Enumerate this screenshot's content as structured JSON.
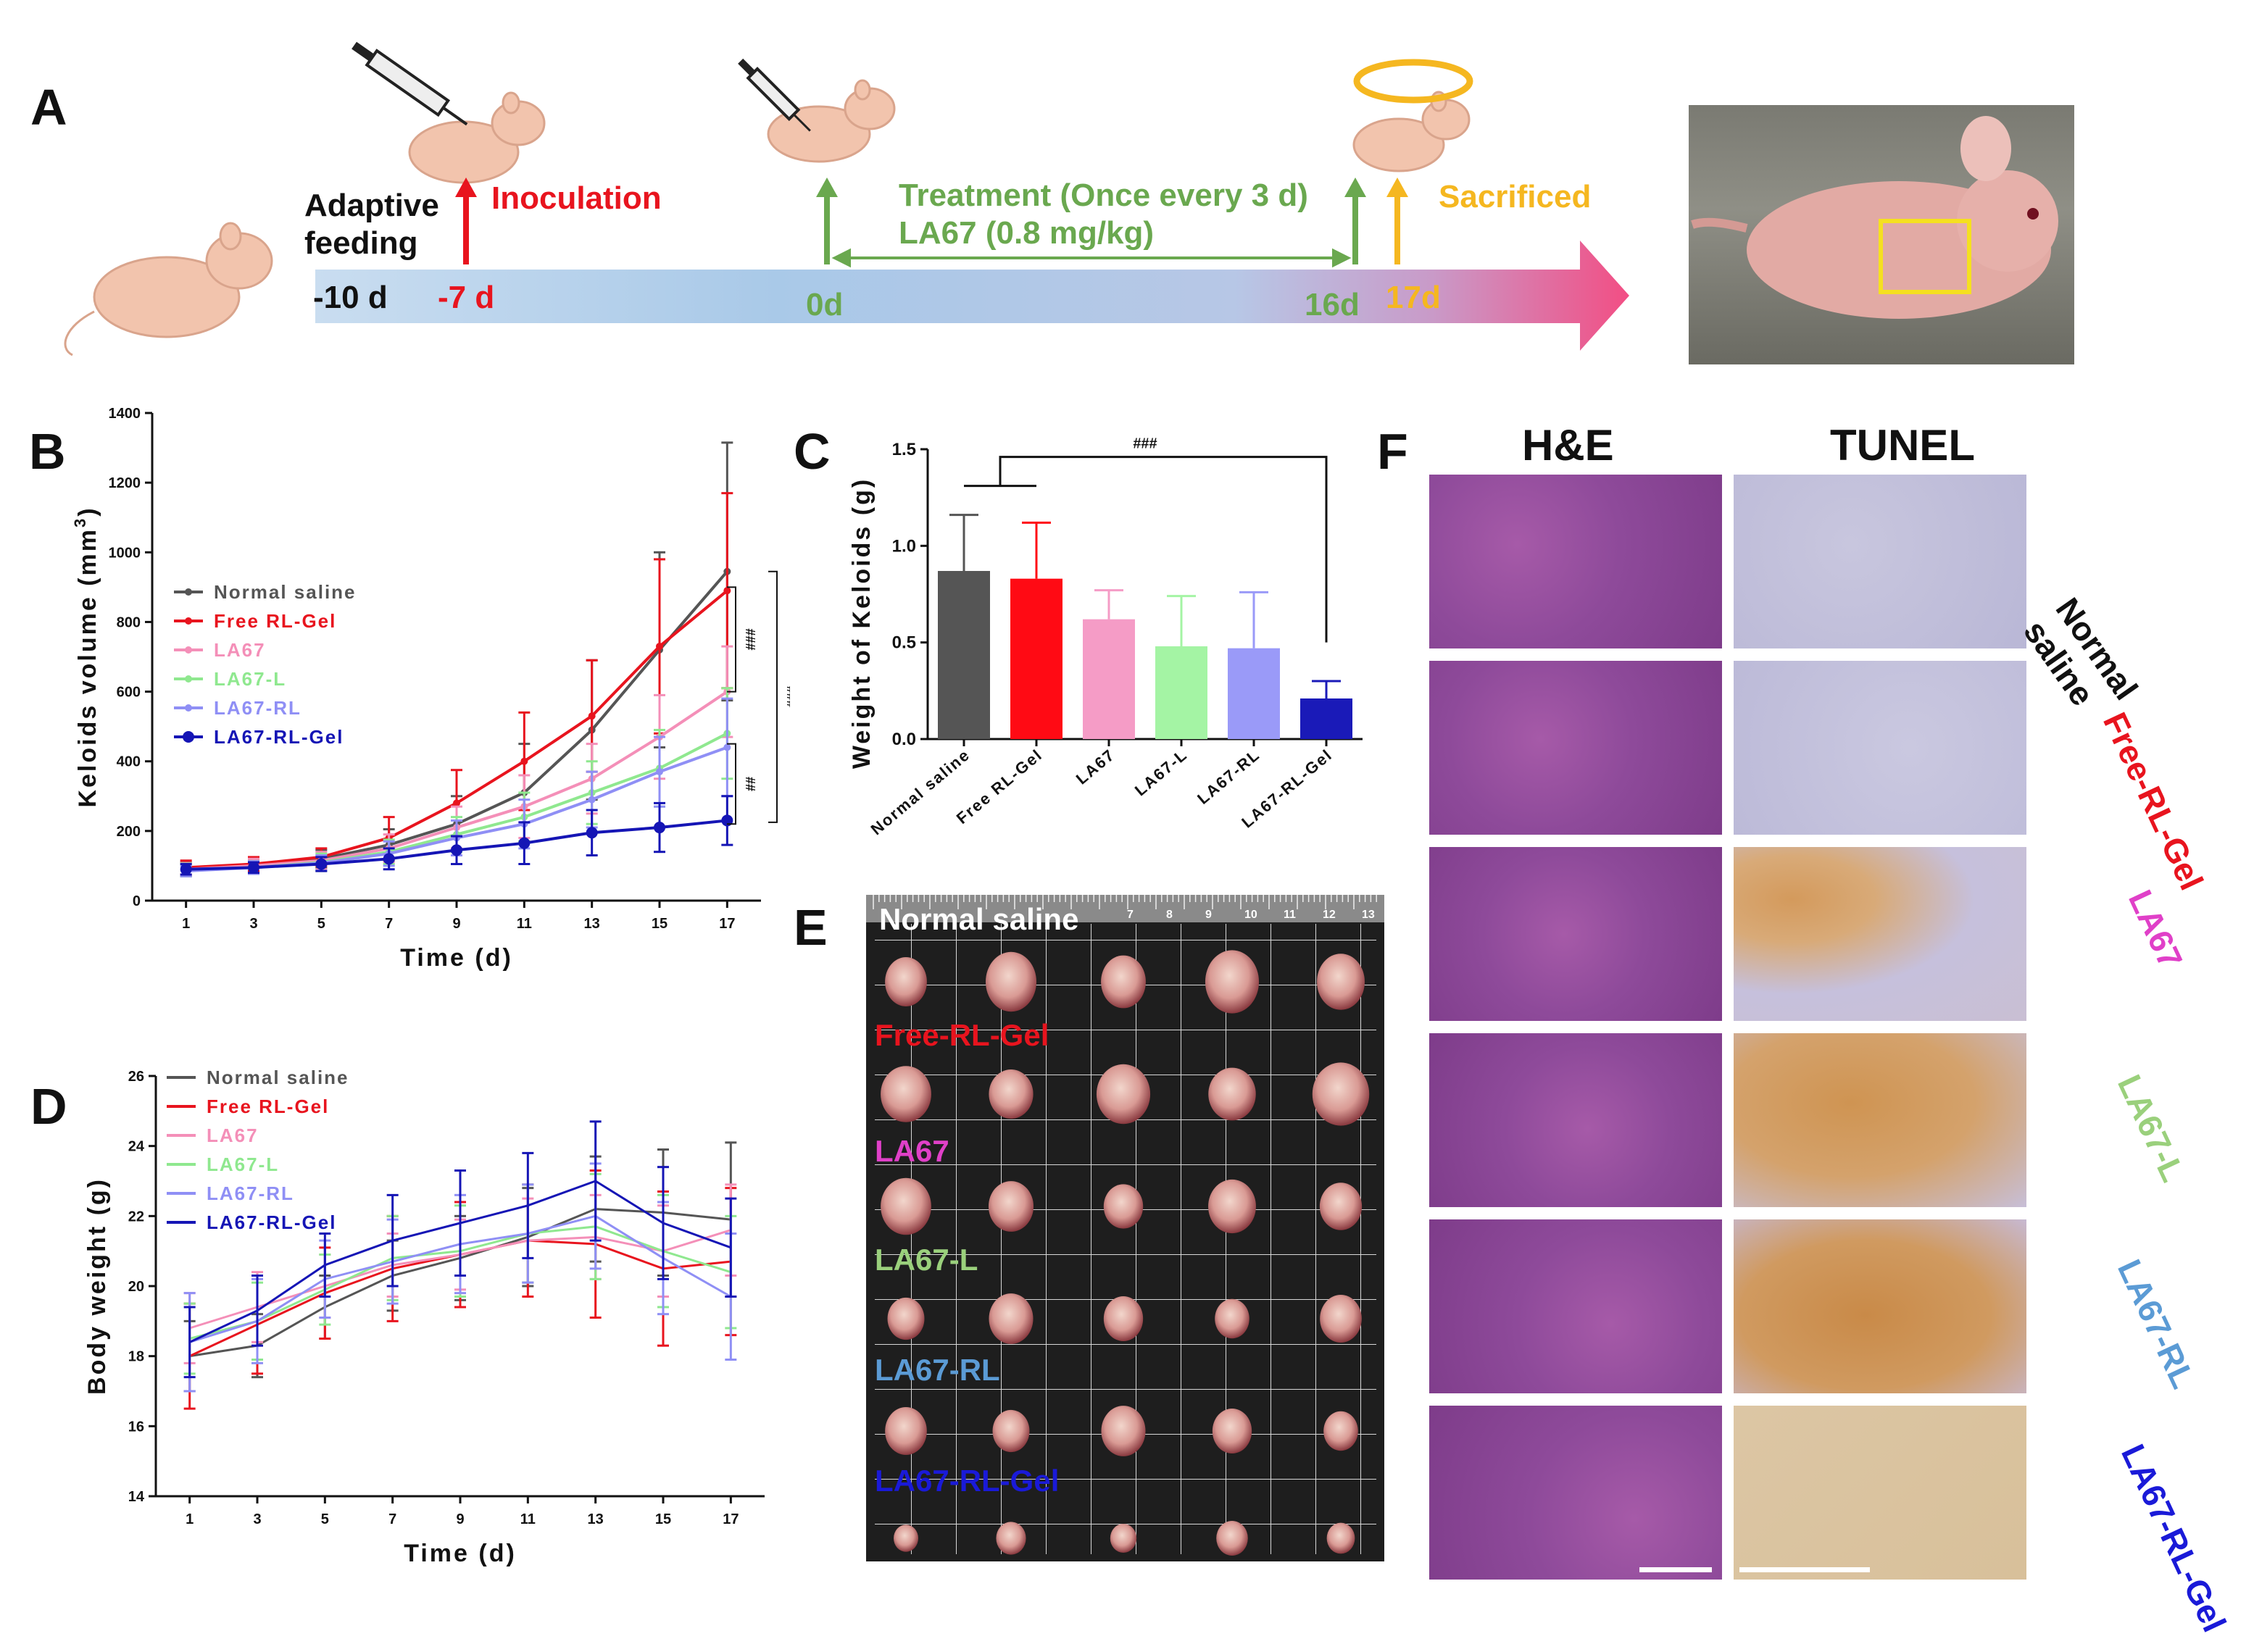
{
  "panel_labels": {
    "a": "A",
    "b": "B",
    "c": "C",
    "d": "D",
    "e": "E",
    "f": "F"
  },
  "timeline": {
    "adaptive_feeding": [
      "Adaptive",
      "feeding"
    ],
    "inoculation": "Inoculation",
    "treatment": "Treatment (Once every 3 d)",
    "dose": "LA67 (0.8 mg/kg)",
    "sacrificed": "Sacrificed",
    "days": [
      "-10 d",
      "-7 d",
      "0d",
      "16d",
      "17d"
    ],
    "colors": {
      "inoculation": "#e8141e",
      "treatment": "#6aa84f",
      "sacrificed": "#f5b720"
    }
  },
  "series_names": [
    "Normal saline",
    "Free RL-Gel",
    "LA67",
    "LA67-L",
    "LA67-RL",
    "LA67-RL-Gel"
  ],
  "series_colors": [
    "#555555",
    "#e8141e",
    "#f48fb8",
    "#8fe88f",
    "#8f8ff5",
    "#1515b5"
  ],
  "chart_data": [
    {
      "id": "B",
      "type": "line",
      "xlabel": "Time (d)",
      "ylabel": "Keloids volume (mm3)",
      "ylabel_text": "Keloids volume (mm",
      "ylabel_sup": "3",
      "ylabel_close": ")",
      "x": [
        1,
        3,
        5,
        7,
        9,
        11,
        13,
        15,
        17
      ],
      "xlim": [
        0,
        18
      ],
      "ylim": [
        0,
        1400
      ],
      "yticks": [
        0,
        200,
        400,
        600,
        800,
        1000,
        1200,
        1400
      ],
      "series": [
        {
          "name": "Normal saline",
          "values": [
            90,
            100,
            120,
            160,
            220,
            310,
            490,
            720,
            945
          ],
          "errors": [
            20,
            20,
            25,
            45,
            80,
            140,
            200,
            280,
            370
          ]
        },
        {
          "name": "Free RL-Gel",
          "values": [
            95,
            105,
            125,
            180,
            280,
            400,
            530,
            730,
            890
          ],
          "errors": [
            20,
            20,
            25,
            60,
            95,
            140,
            160,
            250,
            280
          ]
        },
        {
          "name": "LA67",
          "values": [
            90,
            100,
            115,
            150,
            210,
            270,
            350,
            470,
            600
          ],
          "errors": [
            18,
            20,
            25,
            40,
            60,
            90,
            100,
            120,
            130
          ]
        },
        {
          "name": "LA67-L",
          "values": [
            88,
            95,
            110,
            140,
            190,
            240,
            310,
            380,
            480
          ],
          "errors": [
            18,
            18,
            25,
            35,
            50,
            70,
            90,
            110,
            130
          ]
        },
        {
          "name": "LA67-RL",
          "values": [
            85,
            95,
            108,
            135,
            180,
            220,
            290,
            370,
            440
          ],
          "errors": [
            15,
            18,
            22,
            35,
            50,
            70,
            80,
            100,
            140
          ]
        },
        {
          "name": "LA67-RL-Gel",
          "values": [
            90,
            95,
            105,
            120,
            145,
            165,
            195,
            210,
            230
          ],
          "errors": [
            15,
            15,
            20,
            30,
            40,
            60,
            65,
            70,
            70
          ]
        }
      ],
      "annotations": [
        "###",
        "###",
        "##"
      ]
    },
    {
      "id": "C",
      "type": "bar",
      "ylabel": "Weight of Keloids (g)",
      "categories": [
        "Normal saline",
        "Free RL-Gel",
        "LA67",
        "LA67-L",
        "LA67-RL",
        "LA67-RL-Gel"
      ],
      "values": [
        0.87,
        0.83,
        0.62,
        0.48,
        0.47,
        0.21
      ],
      "errors": [
        0.29,
        0.29,
        0.15,
        0.26,
        0.29,
        0.09
      ],
      "ylim": [
        0,
        1.5
      ],
      "yticks": [
        "0.0",
        "0.5",
        "1.0",
        "1.5"
      ],
      "annotation": "###"
    },
    {
      "id": "D",
      "type": "line",
      "xlabel": "Time (d)",
      "ylabel": "Body weight (g)",
      "x": [
        1,
        3,
        5,
        7,
        9,
        11,
        13,
        15,
        17
      ],
      "xlim": [
        0,
        18
      ],
      "ylim": [
        14,
        26
      ],
      "yticks": [
        14,
        16,
        18,
        20,
        22,
        24,
        26
      ],
      "series": [
        {
          "name": "Normal saline",
          "values": [
            18.0,
            18.3,
            19.4,
            20.3,
            20.8,
            21.4,
            22.2,
            22.1,
            21.9
          ],
          "errors": [
            1.0,
            0.9,
            0.9,
            1.0,
            1.2,
            1.4,
            1.5,
            1.8,
            2.2
          ]
        },
        {
          "name": "Free RL-Gel",
          "values": [
            18.0,
            18.9,
            19.8,
            20.5,
            20.9,
            21.3,
            21.2,
            20.5,
            20.7
          ],
          "errors": [
            1.5,
            1.4,
            1.3,
            1.5,
            1.5,
            1.6,
            2.1,
            2.2,
            2.1
          ]
        },
        {
          "name": "LA67",
          "values": [
            18.8,
            19.4,
            20.0,
            20.6,
            20.9,
            21.3,
            21.4,
            21.0,
            21.6
          ],
          "errors": [
            1.0,
            1.0,
            0.9,
            0.9,
            1.0,
            1.2,
            1.2,
            1.3,
            1.3
          ]
        },
        {
          "name": "LA67-L",
          "values": [
            18.5,
            19.0,
            19.9,
            20.8,
            21.0,
            21.5,
            21.7,
            21.0,
            20.4
          ],
          "errors": [
            1.0,
            1.1,
            1.0,
            1.2,
            1.3,
            1.4,
            1.5,
            1.6,
            1.6
          ]
        },
        {
          "name": "LA67-RL",
          "values": [
            18.4,
            19.0,
            20.2,
            20.7,
            21.2,
            21.5,
            22.0,
            20.8,
            19.7
          ],
          "errors": [
            1.4,
            1.2,
            1.1,
            1.2,
            1.4,
            1.4,
            1.5,
            1.6,
            1.8
          ]
        },
        {
          "name": "LA67-RL-Gel",
          "values": [
            18.4,
            19.3,
            20.6,
            21.3,
            21.8,
            22.3,
            23.0,
            21.8,
            21.1
          ],
          "errors": [
            1.0,
            1.0,
            0.9,
            1.3,
            1.5,
            1.5,
            1.7,
            1.6,
            1.4
          ]
        }
      ]
    }
  ],
  "panel_e": {
    "labels": [
      "Normal saline",
      "Free-RL-Gel",
      "LA67",
      "LA67-L",
      "LA67-RL",
      "LA67-RL-Gel"
    ],
    "label_colors": [
      "#ffffff",
      "#e8141e",
      "#e040c8",
      "#9ad07c",
      "#5b9bd5",
      "#1a1ad8"
    ],
    "ruler_numbers": [
      "7",
      "8",
      "9",
      "10",
      "11",
      "12",
      "13"
    ]
  },
  "panel_f": {
    "headers": [
      "H&E",
      "TUNEL"
    ],
    "row_labels": [
      "Normal saline",
      "Free-RL-Gel",
      "LA67",
      "LA67-L",
      "LA67-RL",
      "LA67-RL-Gel"
    ],
    "row_colors": [
      "#111111",
      "#e8141e",
      "#e040c8",
      "#9ad07c",
      "#5b9bd5",
      "#1a1ad8"
    ]
  }
}
